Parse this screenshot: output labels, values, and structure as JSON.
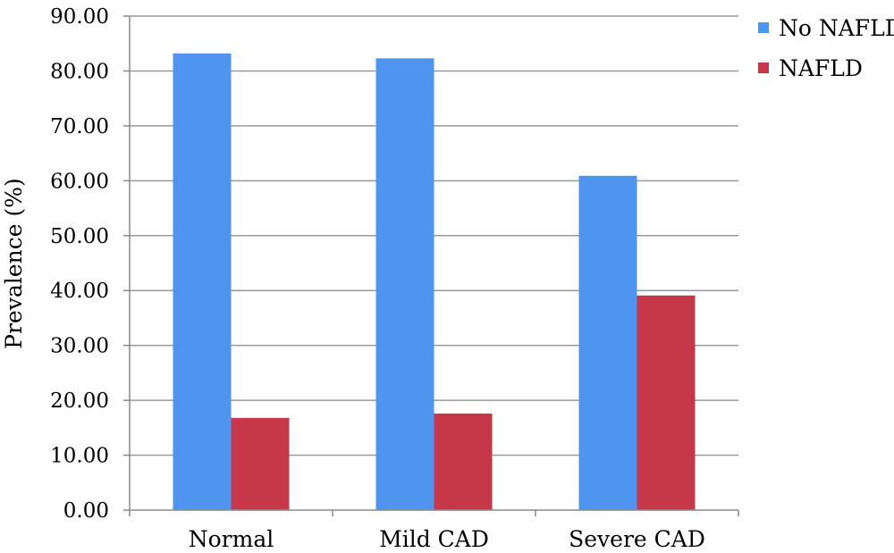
{
  "chart_data": {
    "type": "bar",
    "title": "",
    "xlabel": "",
    "ylabel": "Prevalence (%)",
    "categories": [
      "Normal",
      "Mild CAD",
      "Severe CAD"
    ],
    "series": [
      {
        "name": "No NAFLD",
        "values": [
          83.2,
          82.3,
          60.9
        ],
        "color": "#4f94ef"
      },
      {
        "name": "NAFLD",
        "values": [
          16.8,
          17.6,
          39.1
        ],
        "color": "#c63849"
      }
    ],
    "ylim": [
      0,
      90
    ],
    "yticks": [
      "0.00",
      "10.00",
      "20.00",
      "30.00",
      "40.00",
      "50.00",
      "60.00",
      "70.00",
      "80.00",
      "90.00"
    ],
    "grid": true,
    "legend_position": "top-right"
  }
}
